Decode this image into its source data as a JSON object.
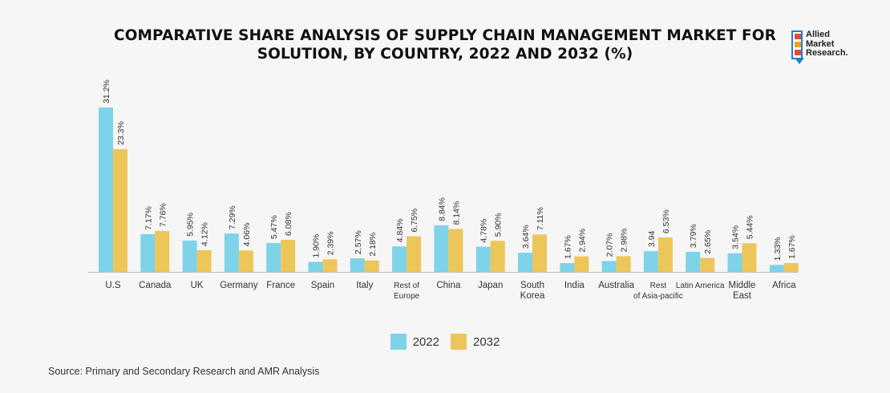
{
  "title_lines": [
    "COMPARATIVE SHARE ANALYSIS OF SUPPLY CHAIN MANAGEMENT MARKET FOR",
    "SOLUTION, BY COUNTRY, 2022 AND 2032 (%)"
  ],
  "logo": {
    "lines": [
      "Allied",
      "Market",
      "Research."
    ]
  },
  "colors": {
    "series_2022": "#7fd3e8",
    "series_2032": "#edc65a",
    "axis": "#bbbbbb",
    "text": "#333333"
  },
  "source": "Source: Primary and Secondary Research and AMR Analysis",
  "chart_data": {
    "type": "bar",
    "title": "COMPARATIVE SHARE ANALYSIS OF SUPPLY CHAIN MANAGEMENT MARKET FOR SOLUTION, BY COUNTRY, 2022 AND 2032 (%)",
    "categories": [
      [
        "U.S"
      ],
      [
        "Canada"
      ],
      [
        "UK"
      ],
      [
        "Germany"
      ],
      [
        "France"
      ],
      [
        "Spain"
      ],
      [
        "Italy"
      ],
      [
        "Rest of",
        "Europe"
      ],
      [
        "China"
      ],
      [
        "Japan"
      ],
      [
        "South",
        "Korea"
      ],
      [
        "India"
      ],
      [
        "Australia"
      ],
      [
        "Rest",
        "of Asia-pacific"
      ],
      [
        "Latin America"
      ],
      [
        "Middle",
        "East"
      ],
      [
        "Africa"
      ]
    ],
    "series": [
      {
        "name": "2022",
        "values": [
          31.2,
          7.17,
          5.95,
          7.29,
          5.47,
          1.9,
          2.57,
          4.84,
          8.84,
          4.78,
          3.64,
          1.67,
          2.07,
          3.94,
          3.79,
          3.54,
          1.33
        ],
        "labels": [
          "31.2%",
          "7.17%",
          "5.95%",
          "7.29%",
          "5.47%",
          "1.90%",
          "2.57%",
          "4.84%",
          "8.84%",
          "4.78%",
          "3.64%",
          "1.67%",
          "2.07%",
          "3.94",
          "3.79%",
          "3.54%",
          "1.33%"
        ]
      },
      {
        "name": "2032",
        "values": [
          23.3,
          7.76,
          4.12,
          4.06,
          6.08,
          2.39,
          2.18,
          6.75,
          8.14,
          5.9,
          7.11,
          2.94,
          2.98,
          6.53,
          2.65,
          5.44,
          1.67
        ],
        "labels": [
          "23.3%",
          "7.76%",
          "4.12%",
          "4.06%",
          "6.08%",
          "2.39%",
          "2.18%",
          "6.75%",
          "8.14%",
          "5.90%",
          "7.11%",
          "2.94%",
          "2.98%",
          "6.53%",
          "2.65%",
          "5.44%",
          "1.67%"
        ]
      }
    ],
    "legend_position": "bottom-center",
    "grid": false
  }
}
